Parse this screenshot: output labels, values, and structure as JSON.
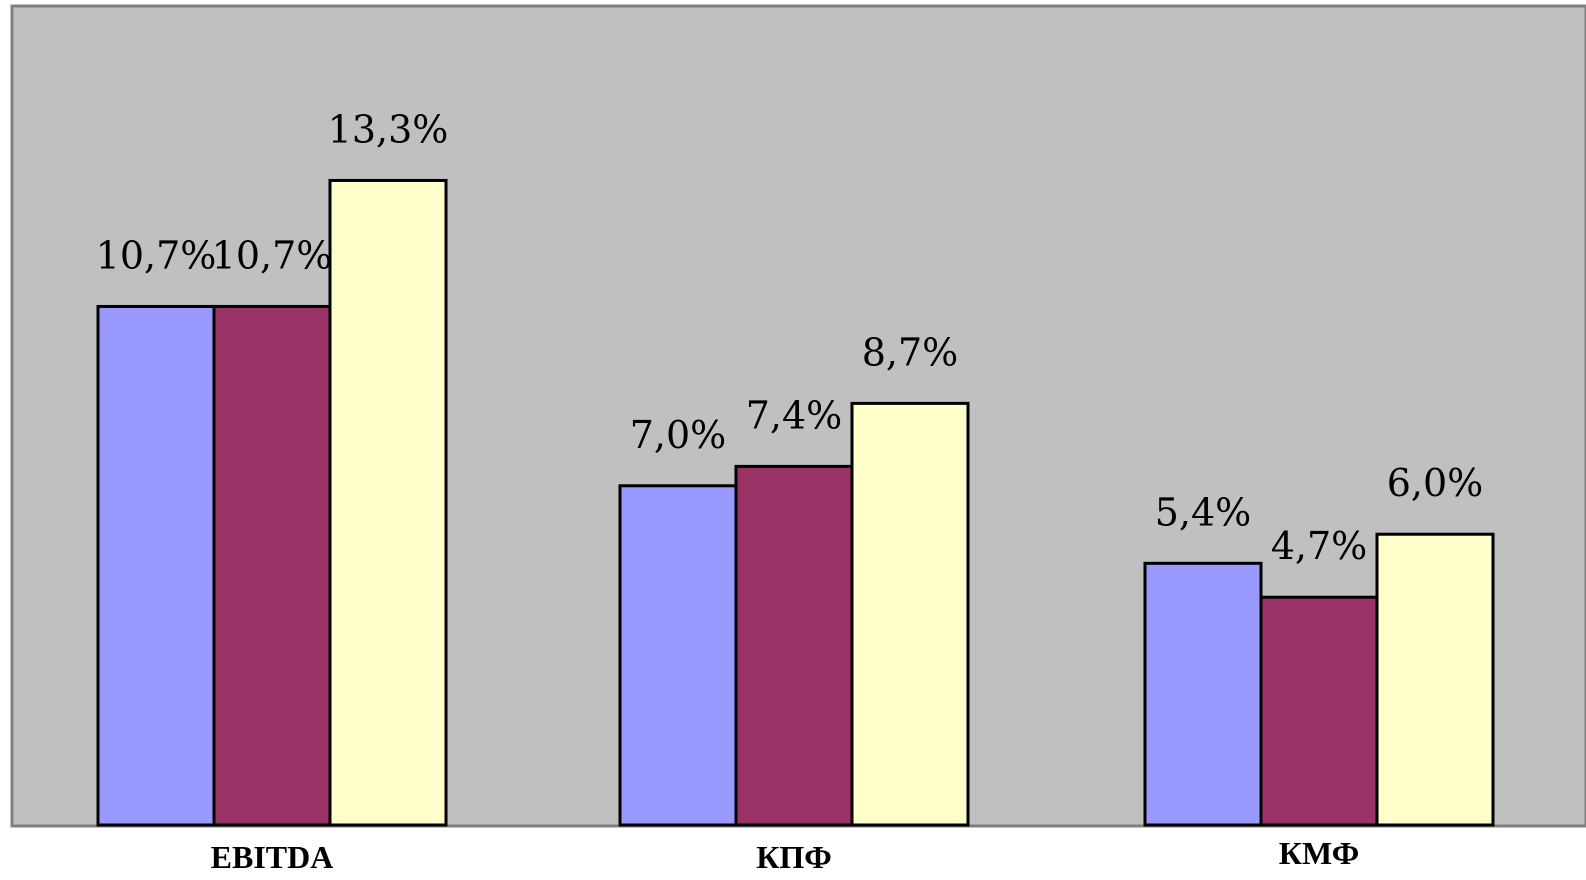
{
  "chart_data": {
    "type": "bar",
    "categories": [
      "EBITDA",
      "КПФ",
      "КМФ"
    ],
    "series": [
      {
        "values": [
          10.7,
          7.0,
          5.4
        ],
        "color": "#9999ff"
      },
      {
        "values": [
          10.7,
          7.4,
          4.7
        ],
        "color": "#993366"
      },
      {
        "values": [
          13.3,
          8.7,
          6.0
        ],
        "color": "#ffffcc"
      }
    ],
    "data_labels": [
      [
        "10,7%",
        "7,0%",
        "5,4%"
      ],
      [
        "10,7%",
        "7,4%",
        "4,7%"
      ],
      [
        "13,3%",
        "8,7%",
        "6,0%"
      ]
    ],
    "ylim": [
      0,
      16.9
    ],
    "grid": false,
    "legend": "none",
    "plot_background": "#c0c0c0",
    "bar_outline": "#000000"
  }
}
